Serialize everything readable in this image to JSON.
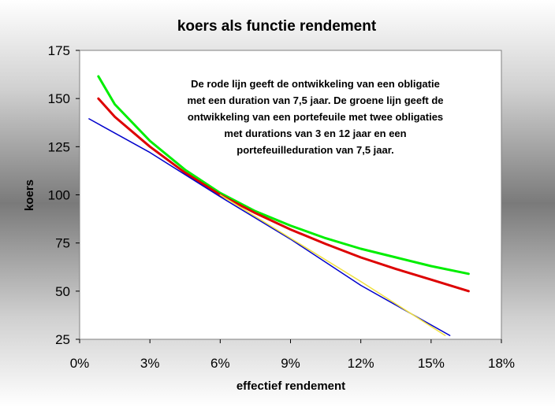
{
  "chart_data": {
    "type": "line",
    "title": "koers als functie rendement",
    "xlabel": "effectief rendement",
    "ylabel": "koers",
    "xlim": [
      0,
      18
    ],
    "ylim": [
      25,
      175
    ],
    "x_ticks": [
      "0%",
      "3%",
      "6%",
      "9%",
      "12%",
      "15%",
      "18%"
    ],
    "y_ticks": [
      "25",
      "50",
      "75",
      "100",
      "125",
      "150",
      "175"
    ],
    "grid": false,
    "legend": "none",
    "annotation": [
      "De rode lijn geeft de ontwikkeling van een obligatie",
      "met een duration van 7,5 jaar. De groene lijn geeft de",
      "ontwikkeling van een portefeuile met twee obligaties",
      "met durations van 3 en 12 jaar en een",
      "portefeuilleduration van 7,5 jaar."
    ],
    "series": [
      {
        "color": "#00ee00",
        "x": [
          0.8,
          1.5,
          3,
          4.5,
          6,
          7.5,
          9,
          10.5,
          12,
          13.5,
          15,
          16.6
        ],
        "values": [
          161.5,
          147,
          128,
          113,
          101,
          91.5,
          84,
          77.5,
          72,
          67.5,
          63,
          59
        ]
      },
      {
        "color": "#dd0000",
        "x": [
          0.8,
          1.5,
          3,
          4.5,
          6,
          7.5,
          9,
          10.5,
          12,
          13.5,
          15,
          16.6
        ],
        "values": [
          150,
          140.5,
          125,
          111.5,
          100,
          90.5,
          82,
          74.5,
          67.5,
          61.5,
          56,
          50
        ]
      },
      {
        "color": "#0000cc",
        "x": [
          0.4,
          3,
          6,
          9,
          12,
          15.8
        ],
        "values": [
          139.5,
          122,
          99,
          77,
          53,
          27
        ]
      },
      {
        "color": "#f0e040",
        "x": [
          6,
          9,
          12,
          15.6
        ],
        "values": [
          100,
          77.5,
          55,
          27
        ]
      }
    ]
  }
}
